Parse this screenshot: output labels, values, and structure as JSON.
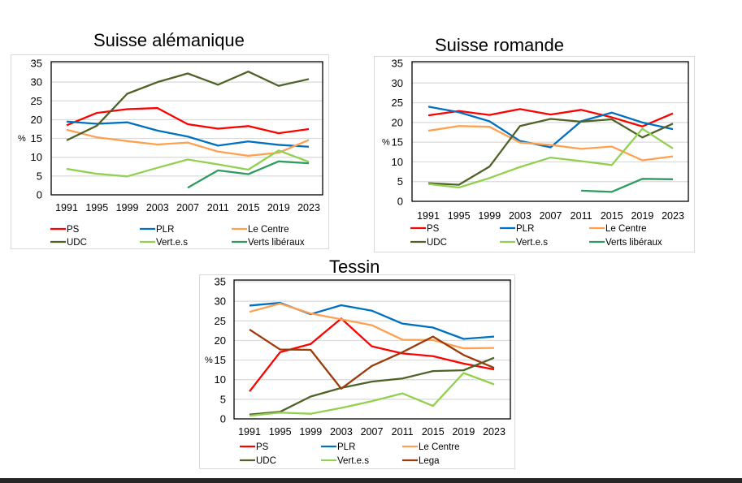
{
  "page": {
    "top_strip_text": "…",
    "bottom_bar": "dark"
  },
  "colors": {
    "PS": "#ff0000",
    "PLR": "#0070c0",
    "Le Centre": "#ffa050",
    "UDC": "#4f6228",
    "Vert.e.s": "#92d050",
    "Verts libéraux": "#2e9b5f",
    "Lega": "#9c3b0a"
  },
  "chart_data": [
    {
      "type": "line",
      "title": "Suisse alémanique",
      "xlabel": "",
      "ylabel": "%",
      "ylim": [
        0,
        35
      ],
      "yticks": [
        "0",
        "5",
        "10",
        "15",
        "20",
        "25",
        "30",
        "35"
      ],
      "grid": true,
      "legend_position": "bottom",
      "categories": [
        "1991",
        "1995",
        "1999",
        "2003",
        "2007",
        "2011",
        "2015",
        "2019",
        "2023"
      ],
      "series": [
        {
          "name": "PS",
          "values": [
            18.5,
            21.8,
            22.8,
            23.1,
            18.8,
            17.6,
            18.3,
            16.4,
            17.5
          ]
        },
        {
          "name": "PLR",
          "values": [
            19.5,
            18.9,
            19.3,
            17.1,
            15.5,
            13.1,
            14.2,
            13.3,
            12.8
          ]
        },
        {
          "name": "Le Centre",
          "values": [
            17.3,
            15.3,
            14.3,
            13.4,
            13.9,
            11.5,
            10.4,
            11.2,
            14.6
          ]
        },
        {
          "name": "UDC",
          "values": [
            14.5,
            18.4,
            26.9,
            30.0,
            32.3,
            29.3,
            32.8,
            29.0,
            30.8
          ]
        },
        {
          "name": "Vert.e.s",
          "values": [
            6.9,
            5.6,
            4.9,
            7.2,
            9.4,
            8.1,
            6.7,
            11.8,
            8.8
          ]
        },
        {
          "name": "Verts libéraux",
          "values": [
            null,
            null,
            null,
            null,
            1.9,
            6.5,
            5.5,
            8.9,
            8.4
          ]
        }
      ]
    },
    {
      "type": "line",
      "title": "Suisse romande",
      "xlabel": "",
      "ylabel": "%",
      "ylim": [
        0,
        35
      ],
      "yticks": [
        "0",
        "5",
        "10",
        "15",
        "20",
        "25",
        "30",
        "35"
      ],
      "grid": true,
      "legend_position": "bottom",
      "categories": [
        "1991",
        "1995",
        "1999",
        "2003",
        "2007",
        "2011",
        "2015",
        "2019",
        "2023"
      ],
      "series": [
        {
          "name": "PS",
          "values": [
            21.8,
            22.9,
            21.9,
            23.4,
            22.0,
            23.2,
            21.3,
            19.0,
            22.3
          ]
        },
        {
          "name": "PLR",
          "values": [
            24.0,
            22.6,
            20.3,
            15.3,
            13.7,
            20.3,
            22.5,
            20.0,
            18.3
          ]
        },
        {
          "name": "Le Centre",
          "values": [
            17.9,
            19.1,
            18.9,
            14.9,
            14.3,
            13.3,
            13.9,
            10.4,
            11.4
          ]
        },
        {
          "name": "UDC",
          "values": [
            4.6,
            4.2,
            8.8,
            19.1,
            20.9,
            20.2,
            20.8,
            16.2,
            19.7
          ]
        },
        {
          "name": "Vert.e.s",
          "values": [
            4.4,
            3.5,
            5.9,
            8.7,
            11.1,
            10.2,
            9.2,
            18.4,
            13.4
          ]
        },
        {
          "name": "Verts libéraux",
          "values": [
            null,
            null,
            null,
            null,
            null,
            2.7,
            2.4,
            5.7,
            5.6
          ]
        }
      ]
    },
    {
      "type": "line",
      "title": "Tessin",
      "xlabel": "",
      "ylabel": "%",
      "ylim": [
        0,
        35
      ],
      "yticks": [
        "0",
        "5",
        "10",
        "15",
        "20",
        "25",
        "30",
        "35"
      ],
      "grid": true,
      "legend_position": "bottom",
      "categories": [
        "1991",
        "1995",
        "1999",
        "2003",
        "2007",
        "2011",
        "2015",
        "2019",
        "2023"
      ],
      "series": [
        {
          "name": "PS",
          "values": [
            7.0,
            17.0,
            19.1,
            25.6,
            18.5,
            16.7,
            16.0,
            14.1,
            12.6
          ]
        },
        {
          "name": "PLR",
          "values": [
            28.9,
            29.6,
            26.7,
            29.0,
            27.6,
            24.3,
            23.3,
            20.4,
            21.0
          ]
        },
        {
          "name": "Le Centre",
          "values": [
            27.3,
            29.4,
            26.9,
            25.4,
            23.9,
            20.2,
            20.1,
            18.0,
            18.1
          ]
        },
        {
          "name": "UDC",
          "values": [
            1.1,
            1.8,
            5.7,
            7.9,
            9.5,
            10.3,
            12.2,
            12.4,
            15.6
          ]
        },
        {
          "name": "Vert.e.s",
          "values": [
            0.8,
            1.6,
            1.3,
            2.8,
            4.5,
            6.5,
            3.3,
            11.7,
            8.8
          ]
        },
        {
          "name": "Lega",
          "values": [
            22.8,
            17.7,
            17.6,
            7.7,
            13.5,
            17.0,
            21.0,
            16.3,
            13.0
          ]
        }
      ]
    }
  ]
}
